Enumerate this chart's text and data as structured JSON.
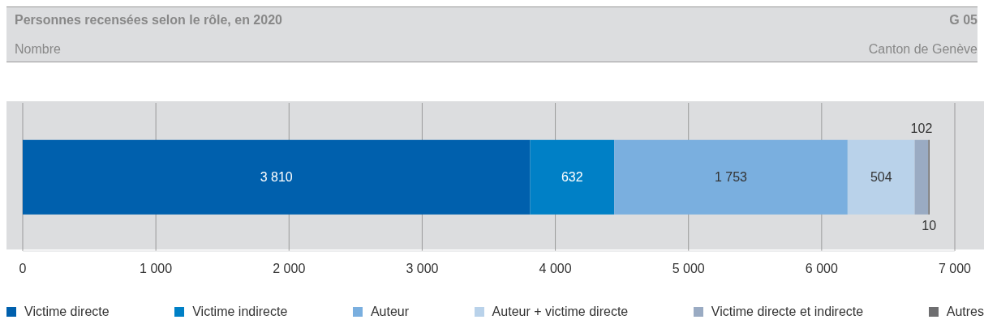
{
  "chart_data": {
    "type": "bar",
    "orientation": "horizontal",
    "stacked": true,
    "title": "Personnes recensées selon le rôle, en 2020",
    "subtitle": "Nombre",
    "annotations": [
      "G 05",
      "Canton de Genève"
    ],
    "categories": [
      null
    ],
    "series": [
      {
        "name": "Victime directe",
        "color": "#0060ad",
        "values": [
          3810
        ],
        "value_labels": [
          "3 810"
        ]
      },
      {
        "name": "Victime indirecte",
        "color": "#0080c6",
        "values": [
          632
        ],
        "value_labels": [
          "632"
        ]
      },
      {
        "name": "Auteur",
        "color": "#7aafdf",
        "values": [
          1753
        ],
        "value_labels": [
          "1 753"
        ]
      },
      {
        "name": "Auteur + victime directe",
        "color": "#b9d2ea",
        "values": [
          504
        ],
        "value_labels": [
          "504"
        ]
      },
      {
        "name": "Victime directe et indirecte",
        "color": "#9aabc3",
        "values": [
          102
        ],
        "value_labels": [
          "102"
        ]
      },
      {
        "name": "Autres",
        "color": "#6e6e70",
        "values": [
          10
        ],
        "value_labels": [
          "10"
        ]
      }
    ],
    "xlim": [
      0,
      7000
    ],
    "xticks": [
      0,
      {
        "value": 1000,
        "label": "1 000"
      },
      {
        "value": 2000,
        "label": "2 000"
      },
      {
        "value": 3000,
        "label": "3 000"
      },
      {
        "value": 4000,
        "label": "4 000"
      },
      {
        "value": 5000,
        "label": "5 000"
      },
      {
        "value": 6000,
        "label": "6 000"
      },
      {
        "value": 7000,
        "label": "7 000"
      }
    ],
    "grid": "x",
    "legend": "bottom"
  }
}
